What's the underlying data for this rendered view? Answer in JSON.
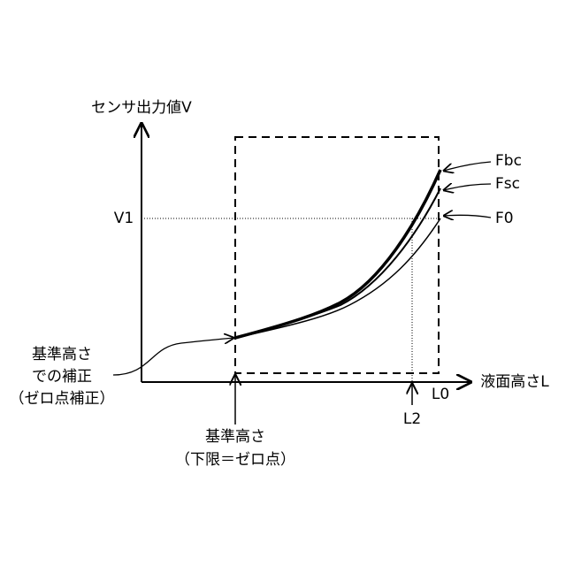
{
  "axes": {
    "y_label": "センサ出力値V",
    "x_label": "液面高さL"
  },
  "markers": {
    "v1": "V1",
    "l0": "L0",
    "l2": "L2"
  },
  "curves": [
    {
      "label": "Fbc"
    },
    {
      "label": "Fsc"
    },
    {
      "label": "F0"
    }
  ],
  "annotations": {
    "zero_point_correction": [
      "基準高さ",
      "での補正",
      "（ゼロ点補正）"
    ],
    "reference_height": [
      "基準高さ",
      "（下限＝ゼロ点）"
    ]
  }
}
